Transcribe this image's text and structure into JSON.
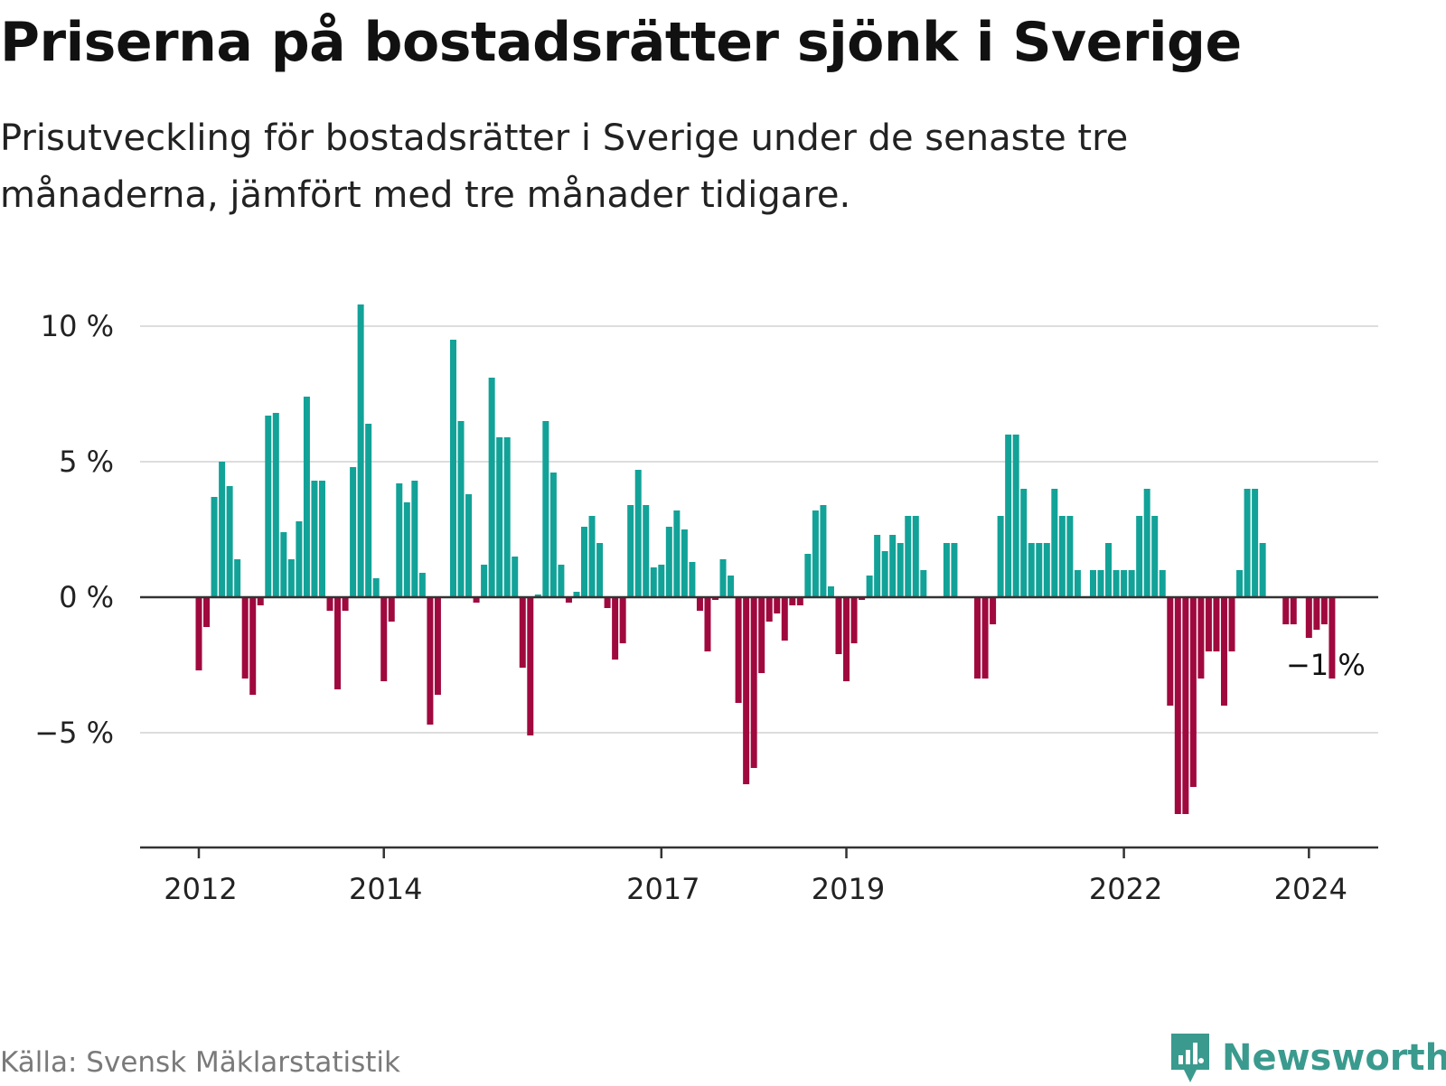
{
  "header": {
    "title": "Priserna på bostadsrätter sjönk i Sverige",
    "subtitle": "Prisutveckling för bostadsrätter i Sverige under de senaste tre månaderna, jämfört med tre månader tidigare."
  },
  "footer": {
    "source": "Källa: Svensk Mäklarstatistik",
    "brand": "Newsworthy"
  },
  "colors": {
    "positive": "#12a298",
    "negative": "#a0093e",
    "grid": "#dddddd",
    "zero_line": "#333333",
    "brand": "#3a9a8e"
  },
  "chart_data": {
    "type": "bar",
    "title": "Priserna på bostadsrätter sjönk i Sverige",
    "xlabel": "",
    "ylabel": "",
    "ylim": [
      -9.3,
      10.9
    ],
    "grid": true,
    "x_start": "2011-12",
    "frequency": "monthly",
    "y_ticks": [
      {
        "value": 10,
        "label": "10 %"
      },
      {
        "value": 5,
        "label": "5 %"
      },
      {
        "value": 0,
        "label": "0 %"
      },
      {
        "value": -5,
        "label": "−5 %"
      }
    ],
    "x_ticks": [
      {
        "index": 0,
        "label": "2012"
      },
      {
        "index": 24,
        "label": "2014"
      },
      {
        "index": 60,
        "label": "2017"
      },
      {
        "index": 84,
        "label": "2019"
      },
      {
        "index": 120,
        "label": "2022"
      },
      {
        "index": 144,
        "label": "2024"
      }
    ],
    "values": [
      -2.7,
      -1.1,
      3.7,
      5.0,
      4.1,
      1.4,
      -3.0,
      -3.6,
      -0.3,
      6.7,
      6.8,
      2.4,
      1.4,
      2.8,
      7.4,
      4.3,
      4.3,
      -0.5,
      -3.4,
      -0.5,
      4.8,
      10.8,
      6.4,
      0.7,
      -3.1,
      -0.9,
      4.2,
      3.5,
      4.3,
      0.9,
      -4.7,
      -3.6,
      0.0,
      9.5,
      6.5,
      3.8,
      -0.2,
      1.2,
      8.1,
      5.9,
      5.9,
      1.5,
      -2.6,
      -5.1,
      0.1,
      6.5,
      4.6,
      1.2,
      -0.2,
      0.2,
      2.6,
      3.0,
      2.0,
      -0.4,
      -2.3,
      -1.7,
      3.4,
      4.7,
      3.4,
      1.1,
      1.2,
      2.6,
      3.2,
      2.5,
      1.3,
      -0.5,
      -2.0,
      -0.1,
      1.4,
      0.8,
      -3.9,
      -6.9,
      -6.3,
      -2.8,
      -0.9,
      -0.6,
      -1.6,
      -0.3,
      -0.3,
      1.6,
      3.2,
      3.4,
      0.4,
      -2.1,
      -3.1,
      -1.7,
      -0.1,
      0.8,
      2.3,
      1.7,
      2.3,
      2.0,
      3.0,
      3.0,
      1.0,
      0.0,
      0.0,
      2.0,
      2.0,
      0.0,
      0.0,
      -3.0,
      -3.0,
      -1.0,
      3.0,
      6.0,
      6.0,
      4.0,
      2.0,
      2.0,
      2.0,
      4.0,
      3.0,
      3.0,
      1.0,
      0.0,
      1.0,
      1.0,
      2.0,
      1.0,
      1.0,
      1.0,
      3.0,
      4.0,
      3.0,
      1.0,
      -4.0,
      -8.0,
      -8.0,
      -7.0,
      -3.0,
      -2.0,
      -2.0,
      -4.0,
      -2.0,
      1.0,
      4.0,
      4.0,
      2.0,
      0.0,
      0.0,
      -1.0,
      -1.0,
      0.0,
      -1.5,
      -1.2,
      -1.0,
      -3.0
    ],
    "annotation": {
      "index": 145,
      "label": "−1 %"
    }
  }
}
